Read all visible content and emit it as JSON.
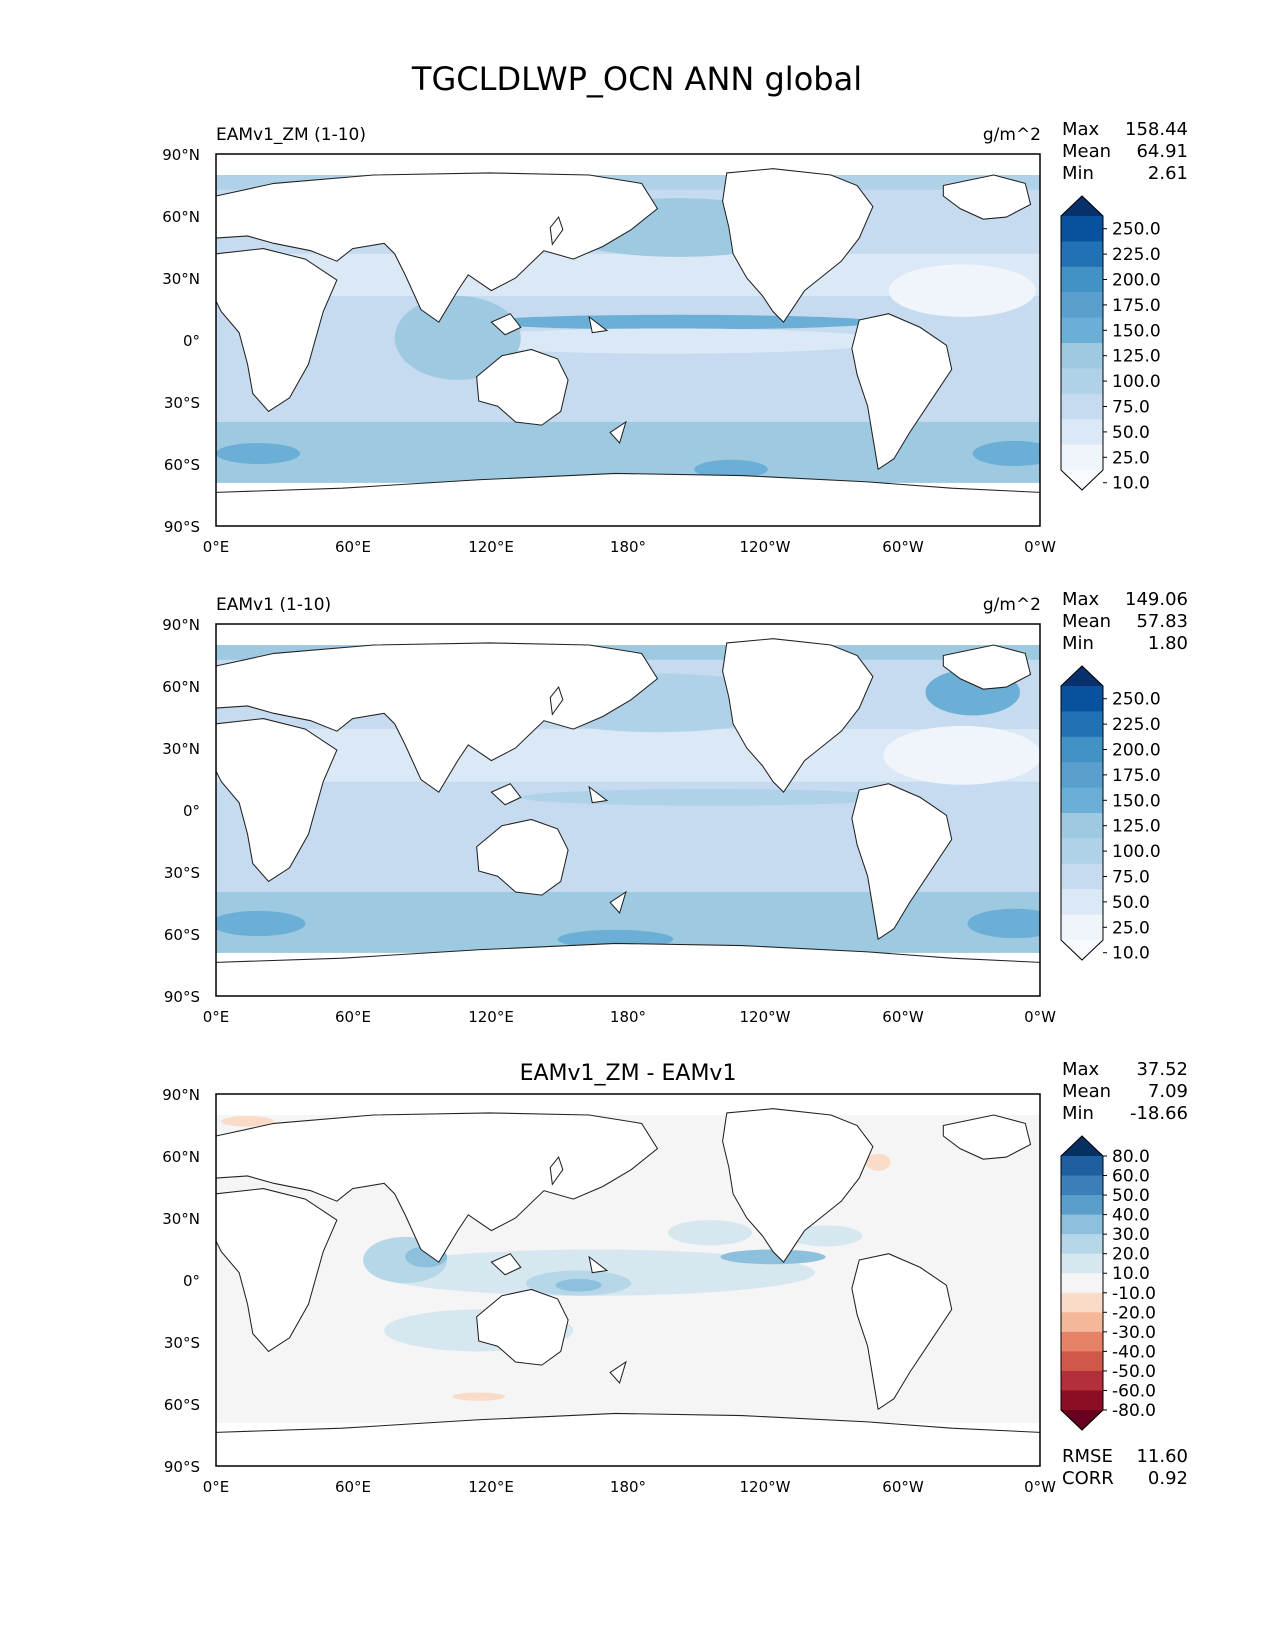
{
  "figure_title": "TGCLDLWP_OCN ANN global",
  "x_ticks": [
    "0°E",
    "60°E",
    "120°E",
    "180°",
    "120°W",
    "60°W",
    "0°W"
  ],
  "y_ticks": [
    "90°N",
    "60°N",
    "30°N",
    "0°",
    "30°S",
    "60°S",
    "90°S"
  ],
  "chart_data": [
    {
      "type": "heatmap",
      "title": "EAMv1_ZM (1-10)",
      "units": "g/m^2",
      "stats": {
        "max_label": "Max",
        "max": "158.44",
        "mean_label": "Mean",
        "mean": "64.91",
        "min_label": "Min",
        "min": "2.61"
      },
      "xlim": [
        0,
        360
      ],
      "ylim": [
        -90,
        90
      ],
      "colorbar_levels": [
        "250.0",
        "225.0",
        "200.0",
        "175.0",
        "150.0",
        "125.0",
        "100.0",
        "75.0",
        "50.0",
        "25.0",
        "10.0"
      ],
      "colorbar_colors": [
        "#08306b",
        "#08519c",
        "#2171b5",
        "#4292c6",
        "#5aa0cf",
        "#6baed6",
        "#9ecae1",
        "#b0d2e8",
        "#c6dbef",
        "#dbe9f6",
        "#eff5fb",
        "#f7fbff"
      ]
    },
    {
      "type": "heatmap",
      "title": "EAMv1 (1-10)",
      "units": "g/m^2",
      "stats": {
        "max_label": "Max",
        "max": "149.06",
        "mean_label": "Mean",
        "mean": "57.83",
        "min_label": "Min",
        "min": "1.80"
      },
      "xlim": [
        0,
        360
      ],
      "ylim": [
        -90,
        90
      ],
      "colorbar_levels": [
        "250.0",
        "225.0",
        "200.0",
        "175.0",
        "150.0",
        "125.0",
        "100.0",
        "75.0",
        "50.0",
        "25.0",
        "10.0"
      ],
      "colorbar_colors": [
        "#08306b",
        "#08519c",
        "#2171b5",
        "#4292c6",
        "#5aa0cf",
        "#6baed6",
        "#9ecae1",
        "#b0d2e8",
        "#c6dbef",
        "#dbe9f6",
        "#eff5fb",
        "#f7fbff"
      ]
    },
    {
      "type": "heatmap",
      "title": "EAMv1_ZM - EAMv1",
      "stats": {
        "max_label": "Max",
        "max": "37.52",
        "mean_label": "Mean",
        "mean": "7.09",
        "min_label": "Min",
        "min": "-18.66"
      },
      "xlim": [
        0,
        360
      ],
      "ylim": [
        -90,
        90
      ],
      "colorbar_levels": [
        "80.0",
        "60.0",
        "50.0",
        "40.0",
        "30.0",
        "20.0",
        "10.0",
        "-10.0",
        "-20.0",
        "-30.0",
        "-40.0",
        "-50.0",
        "-60.0",
        "-80.0"
      ],
      "colorbar_colors": [
        "#053061",
        "#1f5f9f",
        "#3a7fb8",
        "#5a9fcc",
        "#8cc0dd",
        "#b6d7e8",
        "#d7e7f0",
        "#f5f5f5",
        "#fadbc8",
        "#f5b799",
        "#e58267",
        "#d05a4a",
        "#b3303a",
        "#8a0f26",
        "#67001f"
      ],
      "rmse_label": "RMSE",
      "rmse": "11.60",
      "corr_label": "CORR",
      "corr": "0.92"
    }
  ]
}
